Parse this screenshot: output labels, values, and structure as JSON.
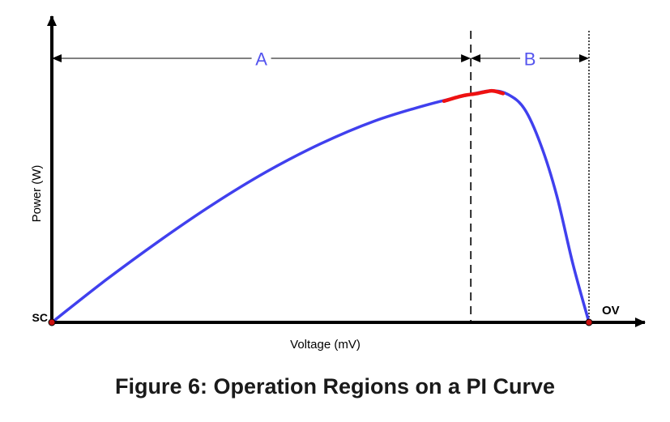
{
  "caption": "Figure 6: Operation Regions on a PI Curve",
  "chart_data": {
    "type": "line",
    "title": "",
    "xlabel": "Voltage (mV)",
    "ylabel": "Power (W)",
    "x_ticks": [],
    "y_ticks": [],
    "grid": false,
    "xlim": [
      0,
      1
    ],
    "ylim": [
      0,
      1
    ],
    "series": [
      {
        "color": "#4040ee",
        "x": [
          0.0,
          0.1,
          0.2,
          0.3,
          0.4,
          0.5,
          0.6,
          0.7,
          0.78,
          0.82,
          0.85,
          0.88,
          0.91,
          0.94,
          0.97,
          1.0
        ],
        "y": [
          0.0,
          0.173,
          0.334,
          0.484,
          0.618,
          0.732,
          0.825,
          0.893,
          0.935,
          0.95,
          0.934,
          0.875,
          0.73,
          0.52,
          0.24,
          0.0
        ]
      }
    ],
    "highlight": {
      "color": "#ee1111",
      "x_range": [
        0.73,
        0.84
      ]
    },
    "points": [
      {
        "label": "SC",
        "x": 0,
        "y": 0
      },
      {
        "label": "OV",
        "x": 1,
        "y": 0
      }
    ],
    "regions": [
      {
        "label": "A",
        "x_range": [
          0,
          0.78
        ]
      },
      {
        "label": "B",
        "x_range": [
          0.78,
          1.0
        ]
      }
    ],
    "reference_lines": [
      {
        "x": 0.78,
        "style": "dashed"
      },
      {
        "x": 1.0,
        "style": "dotted"
      }
    ],
    "colors": {
      "curve": "#4040ee",
      "highlight": "#ee1111",
      "region_label": "#5555ee",
      "axis": "#000000",
      "point_fill": "#cc1111"
    }
  }
}
